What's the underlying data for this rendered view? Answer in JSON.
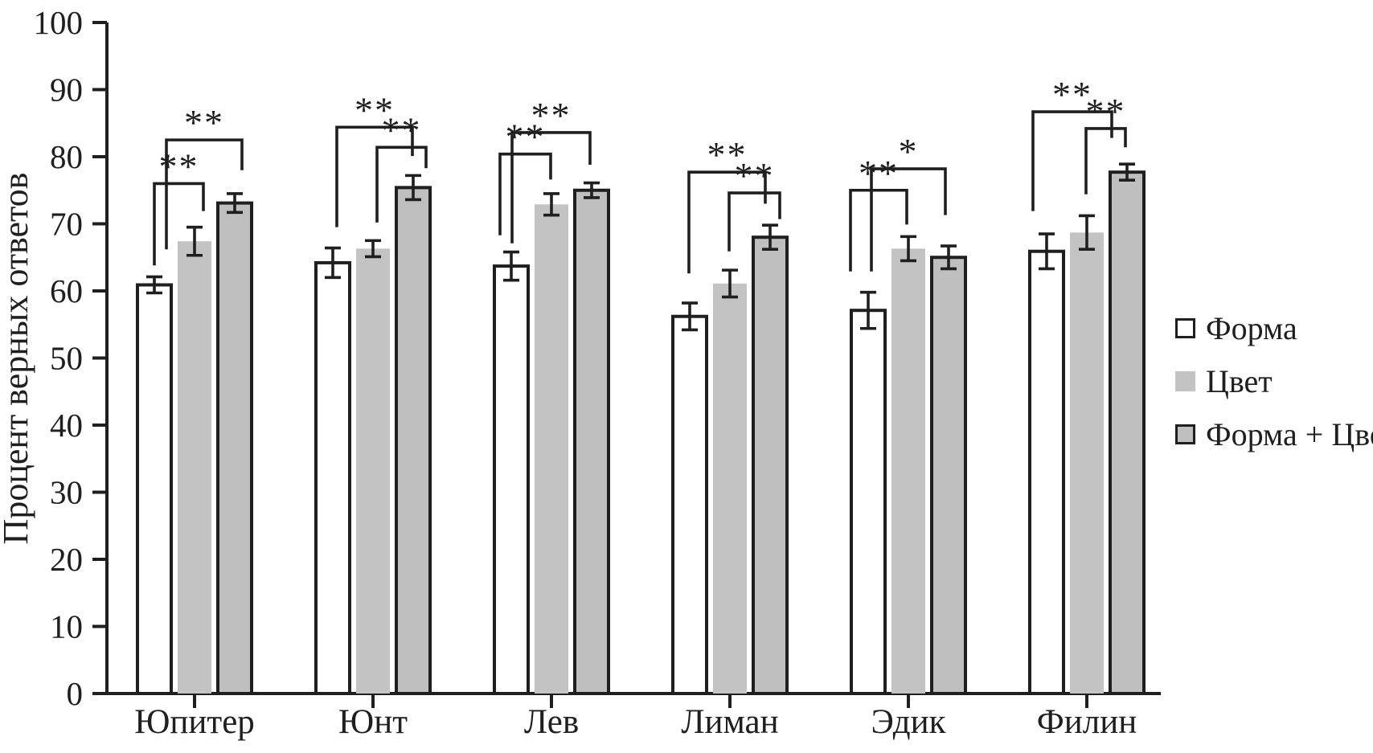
{
  "chart_data": {
    "type": "bar",
    "ylabel": "Процент верных ответов",
    "ylim": [
      0,
      100
    ],
    "yticks": [
      0,
      10,
      20,
      30,
      40,
      50,
      60,
      70,
      80,
      90,
      100
    ],
    "grid": false,
    "legend_position": "right",
    "categories": [
      "Юпитер",
      "Юнт",
      "Лев",
      "Лиман",
      "Эдик",
      "Филин"
    ],
    "series": [
      {
        "name": "Форма",
        "fill": "#ffffff",
        "stroke": "#1f1f1f",
        "values": [
          60.9,
          64.2,
          63.7,
          56.2,
          57.1,
          65.9
        ],
        "errors": [
          1.2,
          2.2,
          2.1,
          2.0,
          2.7,
          2.6
        ]
      },
      {
        "name": "Цвет",
        "fill": "#c3c3c3",
        "stroke": "none",
        "values": [
          67.4,
          66.3,
          72.9,
          61.1,
          66.3,
          68.7
        ],
        "errors": [
          2.1,
          1.2,
          1.6,
          2.0,
          1.8,
          2.5
        ]
      },
      {
        "name": "Форма + Цвет",
        "fill": "#bfbfbf",
        "stroke": "#1f1f1f",
        "values": [
          73.1,
          75.4,
          75.0,
          68.0,
          65.0,
          77.7
        ],
        "errors": [
          1.4,
          1.8,
          1.1,
          1.8,
          1.7,
          1.2
        ]
      }
    ],
    "significance": [
      {
        "category": 0,
        "from": 0,
        "to": 2,
        "label": "**",
        "top": 82.5,
        "fromEnd": 66.2,
        "toEnd": 78.0,
        "fromOff": 15,
        "toOff": 9
      },
      {
        "category": 0,
        "from": 0,
        "to": 1,
        "label": "**",
        "top": 76.0,
        "fromEnd": 63.8,
        "toEnd": 71.9,
        "fromOff": 0,
        "toOff": 11
      },
      {
        "category": 1,
        "from": 0,
        "to": 2,
        "label": "**",
        "top": 84.4,
        "fromEnd": 69.5,
        "toEnd": 80.1,
        "fromOff": 5,
        "toOff": -1
      },
      {
        "category": 1,
        "from": 1,
        "to": 2,
        "label": "**",
        "top": 81.4,
        "fromEnd": 70.2,
        "toEnd": 78.3,
        "fromOff": 5,
        "toOff": 16
      },
      {
        "category": 2,
        "from": 0,
        "to": 2,
        "label": "**",
        "top": 83.6,
        "fromEnd": 67.1,
        "toEnd": 78.8,
        "fromOff": 1,
        "toOff": -2
      },
      {
        "category": 2,
        "from": 0,
        "to": 1,
        "label": "**",
        "top": 80.4,
        "fromEnd": 68.3,
        "toEnd": 76.6,
        "fromOff": -14,
        "toOff": -1
      },
      {
        "category": 3,
        "from": 0,
        "to": 2,
        "label": "**",
        "top": 77.7,
        "fromEnd": 62.6,
        "toEnd": 73.0,
        "fromOff": -1,
        "toOff": -6
      },
      {
        "category": 3,
        "from": 1,
        "to": 2,
        "label": "**",
        "top": 74.6,
        "fromEnd": 65.9,
        "toEnd": 70.7,
        "fromOff": -1,
        "toOff": 12
      },
      {
        "category": 4,
        "from": 0,
        "to": 2,
        "label": "*",
        "top": 78.2,
        "fromEnd": 62.9,
        "toEnd": 71.3,
        "fromOff": 4,
        "toOff": -4
      },
      {
        "category": 4,
        "from": 0,
        "to": 1,
        "label": "**",
        "top": 75.0,
        "fromEnd": 62.9,
        "toEnd": 69.9,
        "fromOff": -22,
        "toOff": -2
      },
      {
        "category": 5,
        "from": 0,
        "to": 2,
        "label": "**",
        "top": 86.7,
        "fromEnd": 71.9,
        "toEnd": 82.8,
        "fromOff": -17,
        "toOff": -19
      },
      {
        "category": 5,
        "from": 1,
        "to": 2,
        "label": "**",
        "top": 84.2,
        "fromEnd": 74.4,
        "toEnd": 81.4,
        "fromOff": -1,
        "toOff": -2
      }
    ]
  },
  "colors": {
    "ink": "#1f1f1f",
    "background": "#ffffff"
  }
}
